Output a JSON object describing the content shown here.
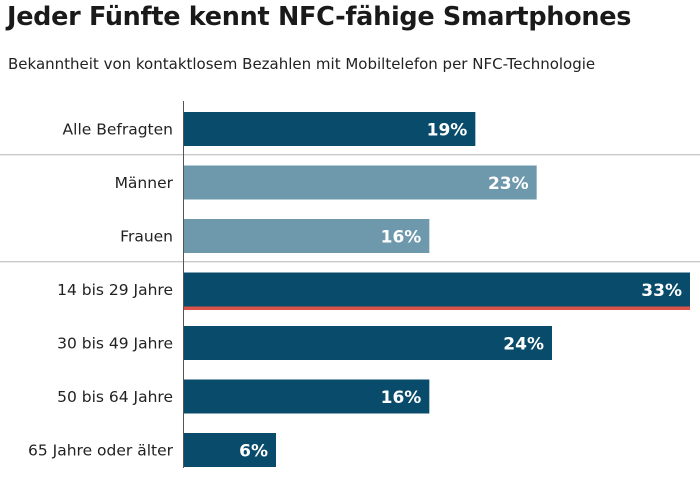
{
  "title": "Jeder Fünfte kennt NFC-fähige Smartphones",
  "subtitle": "Bekanntheit von kontaktlosem Bezahlen mit Mobiltelefon per NFC-Technologie",
  "colors": {
    "dark_bar": "#084b6a",
    "light_bar": "#6e99ac",
    "highlight_line": "#d9534a",
    "axis": "#555555",
    "divider": "#b5b5b5"
  },
  "chart_data": {
    "type": "bar",
    "orientation": "horizontal",
    "title": "Jeder Fünfte kennt NFC-fähige Smartphones",
    "subtitle": "Bekanntheit von kontaktlosem Bezahlen mit Mobiltelefon per NFC-Technologie",
    "xlim": [
      0,
      33
    ],
    "unit": "%",
    "categories": [
      "Alle Befragten",
      "Männer",
      "Frauen",
      "14 bis 29 Jahre",
      "30 bis 49 Jahre",
      "50 bis 64 Jahre",
      "65 Jahre oder älter"
    ],
    "values": [
      19,
      23,
      16,
      33,
      24,
      16,
      6
    ],
    "value_labels": [
      "19%",
      "23%",
      "16%",
      "33%",
      "24%",
      "16%",
      "6%"
    ],
    "bar_colors": [
      "#084b6a",
      "#6e99ac",
      "#6e99ac",
      "#084b6a",
      "#084b6a",
      "#084b6a",
      "#084b6a"
    ],
    "groups": [
      [
        "Alle Befragten"
      ],
      [
        "Männer",
        "Frauen"
      ],
      [
        "14 bis 29 Jahre",
        "30 bis 49 Jahre",
        "50 bis 64 Jahre",
        "65 Jahre oder älter"
      ]
    ],
    "highlight": "14 bis 29 Jahre"
  }
}
